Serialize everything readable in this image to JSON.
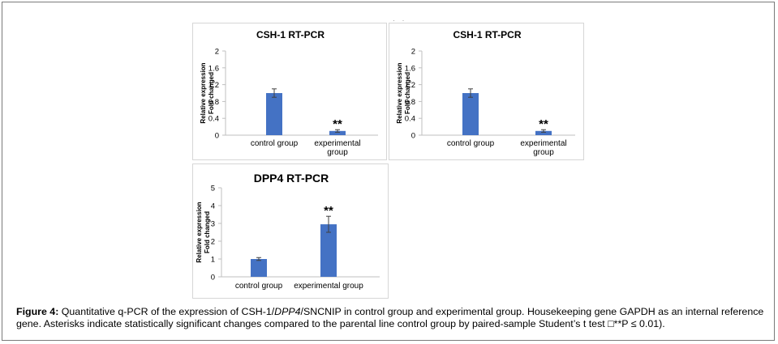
{
  "figure": {
    "caption": {
      "label": "Figure 4:",
      "part1": " Quantitative q-PCR of the expression of CSH-1/",
      "italic": "DPP4",
      "part2": "/SNCNIP in control group and experimental group. Housekeeping gene GAPDH as an internal reference gene. Asterisks indicate statistically significant changes compared to the parental line control group by paired-sample Student’s t test □**P ≤ 0.01)."
    },
    "artifact": "·  ·"
  },
  "chart_data": [
    {
      "type": "bar",
      "title": "CSH-1 RT-PCR",
      "ylabel_line1": "Relative expression",
      "ylabel_line2": "Fold changed",
      "ylim": [
        0,
        2
      ],
      "yticks": [
        "0",
        "0.4",
        "0.8",
        "1.2",
        "1.6",
        "2"
      ],
      "categories": [
        [
          "control group"
        ],
        [
          "experimental",
          "group"
        ]
      ],
      "values": [
        1.0,
        0.1
      ],
      "errors": [
        0.1,
        0.03
      ],
      "annotations": [
        "",
        "**"
      ],
      "bar_color": "#4472C4",
      "grid": false
    },
    {
      "type": "bar",
      "title": "CSH-1 RT-PCR",
      "ylabel_line1": "Relative expression",
      "ylabel_line2": "Fold changed",
      "ylim": [
        0,
        2
      ],
      "yticks": [
        "0",
        "0.4",
        "0.8",
        "1.2",
        "1.6",
        "2"
      ],
      "categories": [
        [
          "control group"
        ],
        [
          "experimental",
          "group"
        ]
      ],
      "values": [
        1.0,
        0.1
      ],
      "errors": [
        0.1,
        0.03
      ],
      "annotations": [
        "",
        "**"
      ],
      "bar_color": "#4472C4",
      "grid": false
    },
    {
      "type": "bar",
      "title": "DPP4 RT-PCR",
      "ylabel_line1": "Relative expression",
      "ylabel_line2": "Fold changed",
      "ylim": [
        0,
        5
      ],
      "yticks": [
        "0",
        "1",
        "2",
        "3",
        "4",
        "5"
      ],
      "categories": [
        [
          "control group"
        ],
        [
          "experimental group"
        ]
      ],
      "values": [
        1.0,
        2.95
      ],
      "errors": [
        0.08,
        0.45
      ],
      "annotations": [
        "",
        "**"
      ],
      "bar_color": "#4472C4",
      "grid": false
    }
  ]
}
